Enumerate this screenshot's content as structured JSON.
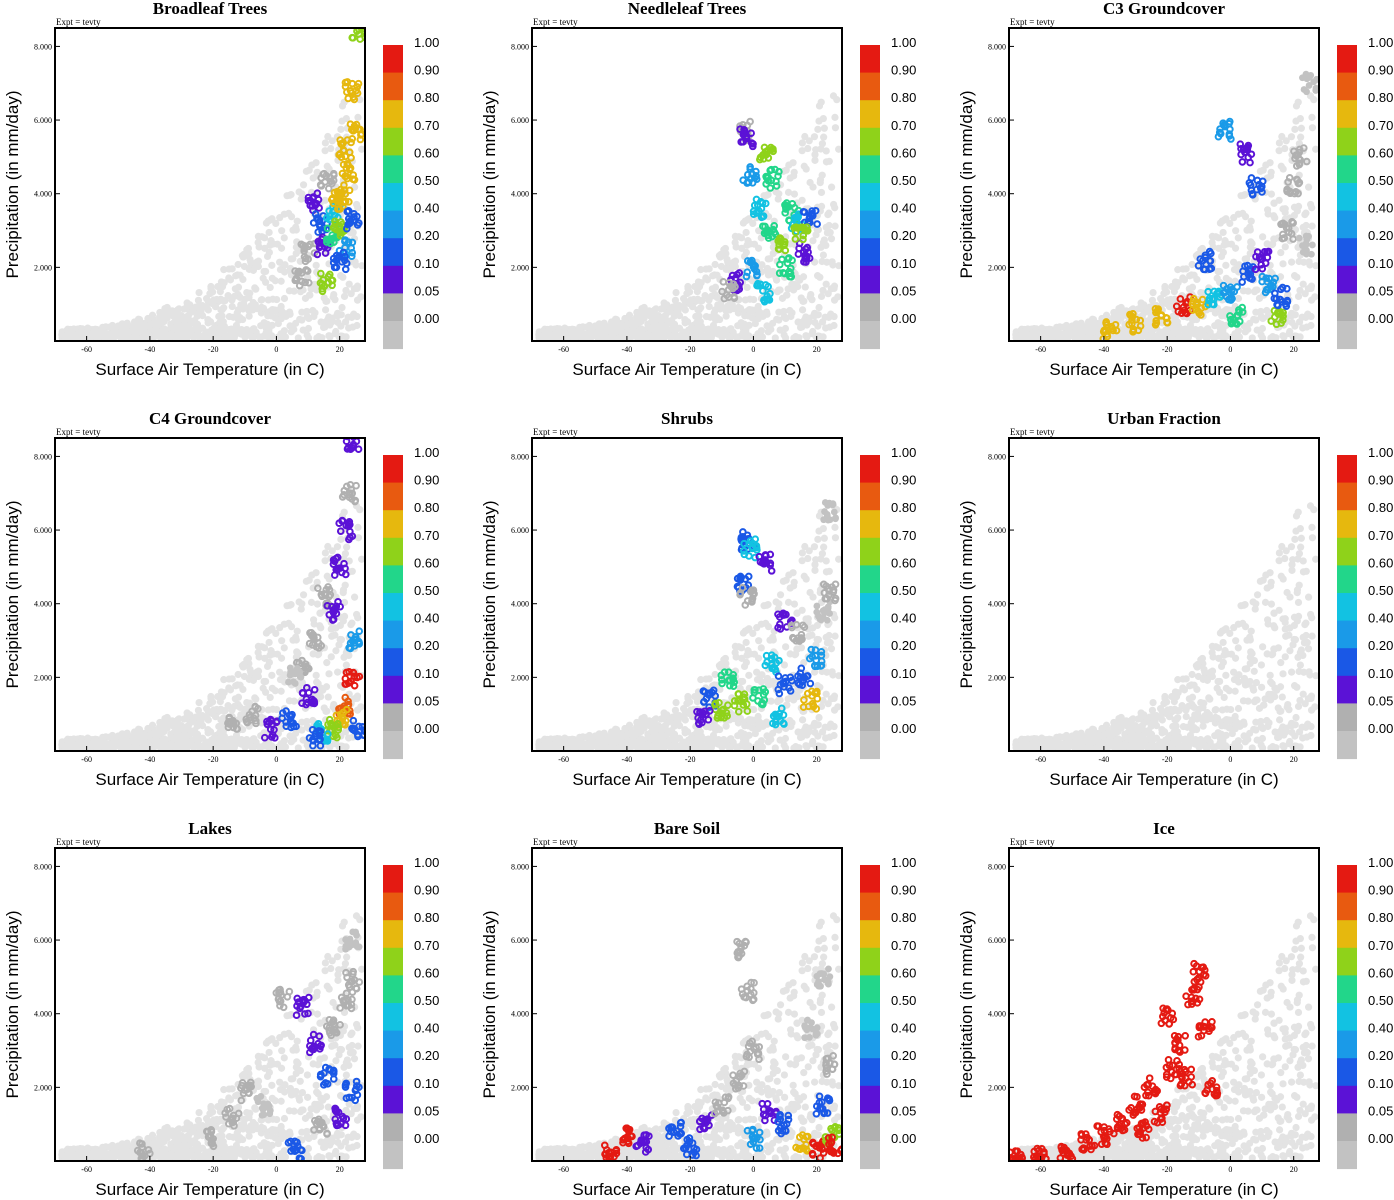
{
  "figure": {
    "expt_label": "Expt = tevty",
    "xlabel": "Surface Air Temperature (in C)",
    "ylabel": "Precipitation (in mm/day)",
    "x_ticks": [
      "-60",
      "-40",
      "-20",
      "0",
      "20"
    ],
    "y_ticks": [
      "2.000",
      "4.000",
      "6.000",
      "8.000"
    ],
    "colorbar_labels": [
      "1.00",
      "0.90",
      "0.80",
      "0.70",
      "0.60",
      "0.50",
      "0.40",
      "0.20",
      "0.10",
      "0.05",
      "0.00"
    ],
    "colorbar_colors": [
      "#e41a12",
      "#e85a10",
      "#e6b80e",
      "#8fd21a",
      "#22d68a",
      "#12c2e2",
      "#1a9ae8",
      "#1a58e6",
      "#5b12d6",
      "#b0b0b0",
      "#c2c2c2"
    ],
    "background_point_color": "#e3e3e3",
    "zero_point_color": "#b0b0b0"
  },
  "chart_data": [
    {
      "type": "scatter",
      "title": "Broadleaf Trees",
      "xlabel": "Surface Air Temperature (in C)",
      "ylabel": "Precipitation (in mm/day)",
      "xlim": [
        -70,
        28
      ],
      "ylim": [
        0,
        8500
      ],
      "background_points": [],
      "points": [
        {
          "x": 16,
          "y": 4300,
          "level": 0.05
        },
        {
          "x": 12,
          "y": 3800,
          "level": 0.1
        },
        {
          "x": 14,
          "y": 3200,
          "level": 0.2
        },
        {
          "x": 10,
          "y": 2400,
          "level": 0.05
        },
        {
          "x": 15,
          "y": 2600,
          "level": 0.1
        },
        {
          "x": 18,
          "y": 3500,
          "level": 0.5
        },
        {
          "x": 18,
          "y": 2900,
          "level": 0.6
        },
        {
          "x": 20,
          "y": 3000,
          "level": 0.7
        },
        {
          "x": 22,
          "y": 5200,
          "level": 0.8
        },
        {
          "x": 24,
          "y": 6800,
          "level": 0.8
        },
        {
          "x": 23,
          "y": 4600,
          "level": 0.8
        },
        {
          "x": 21,
          "y": 4000,
          "level": 0.8
        },
        {
          "x": 19,
          "y": 3800,
          "level": 0.8
        },
        {
          "x": 25,
          "y": 5700,
          "level": 0.8
        },
        {
          "x": 22,
          "y": 2500,
          "level": 0.4
        },
        {
          "x": 16,
          "y": 1600,
          "level": 0.7
        },
        {
          "x": 20,
          "y": 2200,
          "level": 0.2
        },
        {
          "x": 26,
          "y": 8450,
          "level": 0.7
        },
        {
          "x": 8,
          "y": 1700,
          "level": 0.05
        },
        {
          "x": 24,
          "y": 3300,
          "level": 0.3
        }
      ]
    },
    {
      "type": "scatter",
      "title": "Needleleaf Trees",
      "xlabel": "Surface Air Temperature (in C)",
      "ylabel": "Precipitation (in mm/day)",
      "xlim": [
        -70,
        28
      ],
      "ylim": [
        0,
        8500
      ],
      "points": [
        {
          "x": -3,
          "y": 5700,
          "level": 0.05
        },
        {
          "x": -2,
          "y": 5500,
          "level": 0.1
        },
        {
          "x": 4,
          "y": 5100,
          "level": 0.7
        },
        {
          "x": -1,
          "y": 4500,
          "level": 0.4
        },
        {
          "x": 6,
          "y": 4400,
          "level": 0.6
        },
        {
          "x": 2,
          "y": 3600,
          "level": 0.5
        },
        {
          "x": 5,
          "y": 3000,
          "level": 0.6
        },
        {
          "x": 8,
          "y": 2600,
          "level": 0.7
        },
        {
          "x": 12,
          "y": 3500,
          "level": 0.6
        },
        {
          "x": 14,
          "y": 3200,
          "level": 0.5
        },
        {
          "x": 0,
          "y": 2000,
          "level": 0.4
        },
        {
          "x": -6,
          "y": 1600,
          "level": 0.1
        },
        {
          "x": -8,
          "y": 1400,
          "level": 0.05
        },
        {
          "x": 10,
          "y": 2000,
          "level": 0.6
        },
        {
          "x": 16,
          "y": 2400,
          "level": 0.1
        },
        {
          "x": 3,
          "y": 1300,
          "level": 0.5
        },
        {
          "x": 18,
          "y": 3300,
          "level": 0.2
        },
        {
          "x": 15,
          "y": 2900,
          "level": 0.7
        }
      ]
    },
    {
      "type": "scatter",
      "title": "C3 Groundcover",
      "xlabel": "Surface Air Temperature (in C)",
      "ylabel": "Precipitation (in mm/day)",
      "xlim": [
        -70,
        28
      ],
      "ylim": [
        0,
        8500
      ],
      "points": [
        {
          "x": -38,
          "y": 300,
          "level": 0.8
        },
        {
          "x": -30,
          "y": 500,
          "level": 0.8
        },
        {
          "x": -22,
          "y": 700,
          "level": 0.8
        },
        {
          "x": -15,
          "y": 1000,
          "level": 1.0
        },
        {
          "x": -10,
          "y": 900,
          "level": 0.8
        },
        {
          "x": -5,
          "y": 1100,
          "level": 0.5
        },
        {
          "x": 0,
          "y": 1300,
          "level": 0.4
        },
        {
          "x": 5,
          "y": 1800,
          "level": 0.2
        },
        {
          "x": 10,
          "y": 2200,
          "level": 0.1
        },
        {
          "x": 12,
          "y": 1500,
          "level": 0.4
        },
        {
          "x": 18,
          "y": 3000,
          "level": 0.05
        },
        {
          "x": 20,
          "y": 4200,
          "level": 0.05
        },
        {
          "x": 22,
          "y": 5000,
          "level": 0.05
        },
        {
          "x": 25,
          "y": 7000,
          "level": 0.0
        },
        {
          "x": 15,
          "y": 600,
          "level": 0.7
        },
        {
          "x": 2,
          "y": 700,
          "level": 0.6
        },
        {
          "x": -2,
          "y": 5700,
          "level": 0.4
        },
        {
          "x": 5,
          "y": 5100,
          "level": 0.1
        },
        {
          "x": 8,
          "y": 4200,
          "level": 0.2
        },
        {
          "x": -8,
          "y": 2200,
          "level": 0.3
        },
        {
          "x": 24,
          "y": 2600,
          "level": 0.0
        },
        {
          "x": 16,
          "y": 1200,
          "level": 0.2
        }
      ]
    },
    {
      "type": "scatter",
      "title": "C4 Groundcover",
      "xlabel": "Surface Air Temperature (in C)",
      "ylabel": "Precipitation (in mm/day)",
      "xlim": [
        -70,
        28
      ],
      "ylim": [
        0,
        8500
      ],
      "points": [
        {
          "x": -14,
          "y": 700,
          "level": 0.05
        },
        {
          "x": -8,
          "y": 1000,
          "level": 0.05
        },
        {
          "x": -2,
          "y": 600,
          "level": 0.1
        },
        {
          "x": 4,
          "y": 900,
          "level": 0.2
        },
        {
          "x": 8,
          "y": 2200,
          "level": 0.05
        },
        {
          "x": 12,
          "y": 3000,
          "level": 0.05
        },
        {
          "x": 15,
          "y": 4200,
          "level": 0.05
        },
        {
          "x": 18,
          "y": 3800,
          "level": 0.1
        },
        {
          "x": 20,
          "y": 5000,
          "level": 0.1
        },
        {
          "x": 22,
          "y": 6000,
          "level": 0.1
        },
        {
          "x": 23,
          "y": 7000,
          "level": 0.05
        },
        {
          "x": 24,
          "y": 8450,
          "level": 0.1
        },
        {
          "x": 24,
          "y": 2000,
          "level": 1.0
        },
        {
          "x": 22,
          "y": 1200,
          "level": 0.9
        },
        {
          "x": 20,
          "y": 900,
          "level": 0.8
        },
        {
          "x": 18,
          "y": 600,
          "level": 0.7
        },
        {
          "x": 15,
          "y": 500,
          "level": 0.5
        },
        {
          "x": 25,
          "y": 3000,
          "level": 0.4
        },
        {
          "x": 12,
          "y": 400,
          "level": 0.3
        },
        {
          "x": 6,
          "y": 2000,
          "level": 0.0
        },
        {
          "x": 26,
          "y": 600,
          "level": 0.2
        },
        {
          "x": 10,
          "y": 1500,
          "level": 0.1
        }
      ]
    },
    {
      "type": "scatter",
      "title": "Shrubs",
      "xlabel": "Surface Air Temperature (in C)",
      "ylabel": "Precipitation (in mm/day)",
      "xlim": [
        -70,
        28
      ],
      "ylim": [
        0,
        8500
      ],
      "points": [
        {
          "x": -2,
          "y": 5700,
          "level": 0.3
        },
        {
          "x": -1,
          "y": 5500,
          "level": 0.5
        },
        {
          "x": 4,
          "y": 5100,
          "level": 0.1
        },
        {
          "x": -3,
          "y": 4600,
          "level": 0.2
        },
        {
          "x": -2,
          "y": 4200,
          "level": 0.05
        },
        {
          "x": 10,
          "y": 3500,
          "level": 0.1
        },
        {
          "x": 14,
          "y": 3200,
          "level": 0.05
        },
        {
          "x": 6,
          "y": 2400,
          "level": 0.5
        },
        {
          "x": -8,
          "y": 2000,
          "level": 0.6
        },
        {
          "x": -14,
          "y": 1400,
          "level": 0.3
        },
        {
          "x": -10,
          "y": 1100,
          "level": 0.7
        },
        {
          "x": -4,
          "y": 1300,
          "level": 0.7
        },
        {
          "x": 2,
          "y": 1500,
          "level": 0.6
        },
        {
          "x": 10,
          "y": 1800,
          "level": 0.3
        },
        {
          "x": 16,
          "y": 2000,
          "level": 0.2
        },
        {
          "x": 20,
          "y": 2500,
          "level": 0.4
        },
        {
          "x": 22,
          "y": 3800,
          "level": 0.0
        },
        {
          "x": 24,
          "y": 6500,
          "level": 0.0
        },
        {
          "x": -16,
          "y": 900,
          "level": 0.1
        },
        {
          "x": 8,
          "y": 900,
          "level": 0.5
        },
        {
          "x": 18,
          "y": 1400,
          "level": 0.8
        },
        {
          "x": 24,
          "y": 4300,
          "level": 0.05
        }
      ]
    },
    {
      "type": "scatter",
      "title": "Urban Fraction",
      "xlabel": "Surface Air Temperature (in C)",
      "ylabel": "Precipitation (in mm/day)",
      "xlim": [
        -70,
        28
      ],
      "ylim": [
        0,
        8500
      ],
      "points": []
    },
    {
      "type": "scatter",
      "title": "Lakes",
      "xlabel": "Surface Air Temperature (in C)",
      "ylabel": "Precipitation (in mm/day)",
      "xlim": [
        -70,
        28
      ],
      "ylim": [
        0,
        8500
      ],
      "points": [
        {
          "x": -42,
          "y": 300,
          "level": 0.05
        },
        {
          "x": -20,
          "y": 600,
          "level": 0.05
        },
        {
          "x": -14,
          "y": 1200,
          "level": 0.05
        },
        {
          "x": -10,
          "y": 1900,
          "level": 0.05
        },
        {
          "x": -4,
          "y": 1500,
          "level": 0.0
        },
        {
          "x": 2,
          "y": 4400,
          "level": 0.05
        },
        {
          "x": 8,
          "y": 4200,
          "level": 0.1
        },
        {
          "x": 12,
          "y": 3200,
          "level": 0.1
        },
        {
          "x": 16,
          "y": 2300,
          "level": 0.2
        },
        {
          "x": 18,
          "y": 3600,
          "level": 0.05
        },
        {
          "x": 22,
          "y": 4400,
          "level": 0.05
        },
        {
          "x": 24,
          "y": 4900,
          "level": 0.05
        },
        {
          "x": 6,
          "y": 300,
          "level": 0.2
        },
        {
          "x": 20,
          "y": 1200,
          "level": 0.1
        },
        {
          "x": 24,
          "y": 6000,
          "level": 0.0
        },
        {
          "x": 14,
          "y": 900,
          "level": 0.05
        },
        {
          "x": 24,
          "y": 1900,
          "level": 0.3
        }
      ]
    },
    {
      "type": "scatter",
      "title": "Bare Soil",
      "xlabel": "Surface Air Temperature (in C)",
      "ylabel": "Precipitation (in mm/day)",
      "xlim": [
        -70,
        28
      ],
      "ylim": [
        0,
        8500
      ],
      "points": [
        {
          "x": -45,
          "y": 200,
          "level": 1.0
        },
        {
          "x": -40,
          "y": 700,
          "level": 1.0
        },
        {
          "x": -35,
          "y": 500,
          "level": 0.1
        },
        {
          "x": -25,
          "y": 800,
          "level": 0.2
        },
        {
          "x": -15,
          "y": 1000,
          "level": 0.1
        },
        {
          "x": -10,
          "y": 1500,
          "level": 0.05
        },
        {
          "x": -5,
          "y": 2200,
          "level": 0.05
        },
        {
          "x": -3,
          "y": 5700,
          "level": 0.05
        },
        {
          "x": -2,
          "y": 4600,
          "level": 0.05
        },
        {
          "x": 0,
          "y": 3000,
          "level": 0.05
        },
        {
          "x": 5,
          "y": 1300,
          "level": 0.1
        },
        {
          "x": 10,
          "y": 1000,
          "level": 0.2
        },
        {
          "x": 15,
          "y": 500,
          "level": 0.8
        },
        {
          "x": 20,
          "y": 300,
          "level": 1.0
        },
        {
          "x": 25,
          "y": 700,
          "level": 0.7
        },
        {
          "x": 22,
          "y": 1500,
          "level": 0.2
        },
        {
          "x": 24,
          "y": 2600,
          "level": 0.05
        },
        {
          "x": 18,
          "y": 3600,
          "level": 0.0
        },
        {
          "x": 22,
          "y": 5000,
          "level": 0.0
        },
        {
          "x": -20,
          "y": 400,
          "level": 0.3
        },
        {
          "x": 0,
          "y": 600,
          "level": 0.4
        },
        {
          "x": 26,
          "y": 400,
          "level": 1.0
        }
      ]
    },
    {
      "type": "scatter",
      "title": "Ice",
      "xlabel": "Surface Air Temperature (in C)",
      "ylabel": "Precipitation (in mm/day)",
      "xlim": [
        -70,
        28
      ],
      "ylim": [
        0,
        8500
      ],
      "points": [
        {
          "x": -68,
          "y": 50,
          "level": 1.0
        },
        {
          "x": -60,
          "y": 120,
          "level": 1.0
        },
        {
          "x": -52,
          "y": 250,
          "level": 1.0
        },
        {
          "x": -45,
          "y": 500,
          "level": 1.0
        },
        {
          "x": -40,
          "y": 700,
          "level": 1.0
        },
        {
          "x": -35,
          "y": 1000,
          "level": 1.0
        },
        {
          "x": -30,
          "y": 1500,
          "level": 1.0
        },
        {
          "x": -25,
          "y": 2000,
          "level": 1.0
        },
        {
          "x": -22,
          "y": 1300,
          "level": 1.0
        },
        {
          "x": -18,
          "y": 2500,
          "level": 1.0
        },
        {
          "x": -16,
          "y": 3200,
          "level": 1.0
        },
        {
          "x": -14,
          "y": 2300,
          "level": 1.0
        },
        {
          "x": -12,
          "y": 4500,
          "level": 1.0
        },
        {
          "x": -10,
          "y": 5100,
          "level": 1.0
        },
        {
          "x": -8,
          "y": 3600,
          "level": 1.0
        },
        {
          "x": -20,
          "y": 3900,
          "level": 1.0
        },
        {
          "x": -28,
          "y": 800,
          "level": 1.0
        },
        {
          "x": -6,
          "y": 2000,
          "level": 1.0
        }
      ]
    }
  ]
}
